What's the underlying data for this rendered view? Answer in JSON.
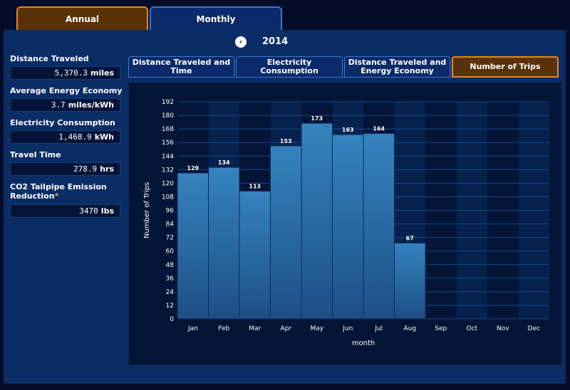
{
  "tabs": {
    "annual": "Annual",
    "monthly": "Monthly"
  },
  "year_nav": {
    "year": "2014",
    "back_glyph": "‹"
  },
  "stats": [
    {
      "label": "Distance Traveled",
      "value": "5,370.3",
      "unit": "miles"
    },
    {
      "label": "Average Energy Economy",
      "value": "3.7",
      "unit": "miles/kWh"
    },
    {
      "label": "Electricity Consumption",
      "value": "1,468.9",
      "unit": "kWh"
    },
    {
      "label": "Travel Time",
      "value": "278.9",
      "unit": "hrs"
    },
    {
      "label": "CO2 Tailpipe Emission Reduction",
      "label_marker": "*",
      "value": "3470",
      "unit": "lbs"
    }
  ],
  "sub_tabs": [
    "Distance Traveled and Time",
    "Electricity Consumption",
    "Distance Traveled and Energy Economy",
    "Number of Trips"
  ],
  "colors": {
    "accent": "#e8891e",
    "bar": "#2e78b4",
    "panel": "#0a2d66"
  },
  "chart_data": {
    "type": "bar",
    "title": "",
    "xlabel": "month",
    "ylabel": "Number of Trips",
    "categories": [
      "Jan",
      "Feb",
      "Mar",
      "Apr",
      "May",
      "Jun",
      "Jul",
      "Aug",
      "Sep",
      "Oct",
      "Nov",
      "Dec"
    ],
    "values": [
      129,
      134,
      113,
      153,
      173,
      163,
      164,
      67,
      null,
      null,
      null,
      null
    ],
    "ylim": [
      0,
      192
    ],
    "yticks": [
      0,
      12,
      24,
      36,
      48,
      60,
      72,
      84,
      96,
      108,
      120,
      132,
      144,
      156,
      168,
      180,
      192
    ],
    "grid": true,
    "legend": "none"
  }
}
